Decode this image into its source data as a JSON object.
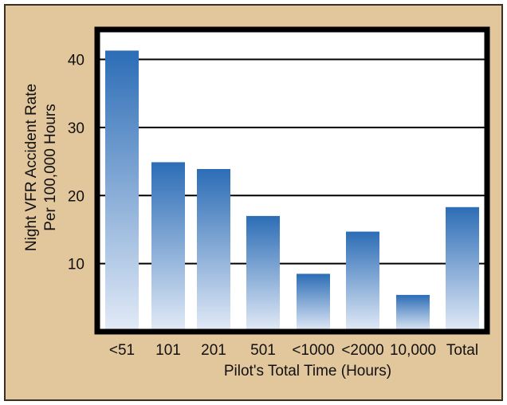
{
  "colors": {
    "panel_background": "#e2c69c",
    "panel_border": "#3a2f22",
    "plot_background": "#ffffff",
    "plot_border": "#000000",
    "bar_top": "#2c6db6",
    "bar_bottom": "#e3ebf7"
  },
  "chart_data": {
    "type": "bar",
    "xlabel": "Pilot's Total Time (Hours)",
    "ylabel": [
      "Night VFR Accident Rate",
      "Per 100,000 Hours"
    ],
    "categories": [
      "<51",
      "101",
      "201",
      "501",
      "<1000",
      "<2000",
      "10,000",
      "Total"
    ],
    "values": [
      41.3,
      24.9,
      23.9,
      17.0,
      8.5,
      14.7,
      5.4,
      18.3
    ],
    "yticks": [
      10,
      20,
      30,
      40
    ],
    "ylim": [
      0,
      44.4
    ],
    "grid": true,
    "legend": "none"
  }
}
